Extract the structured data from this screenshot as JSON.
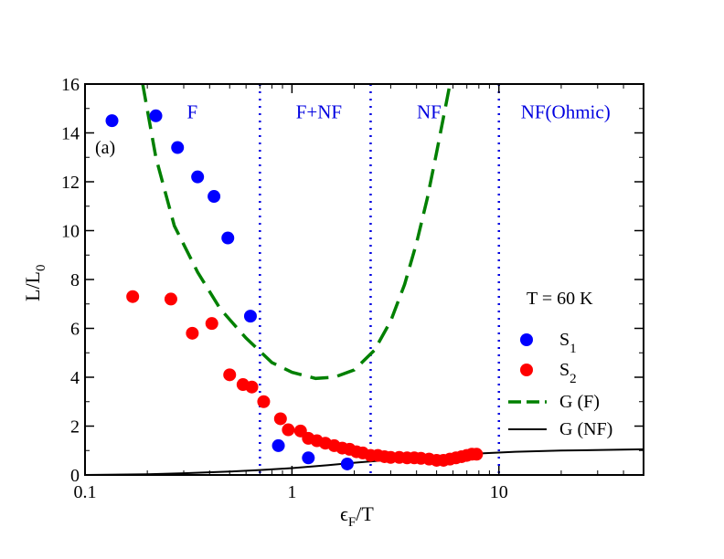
{
  "chart_data": {
    "type": "scatter",
    "panel_label": "(a)",
    "xlabel": {
      "main": "ϵ",
      "sub": "F",
      "rest": "/T"
    },
    "ylabel": {
      "main": "L/L",
      "sub": "0"
    },
    "x_scale": "log",
    "xlim": [
      0.1,
      50
    ],
    "ylim": [
      0,
      16
    ],
    "x_ticks": [
      {
        "value": 0.1,
        "label": "0.1"
      },
      {
        "value": 1,
        "label": "1"
      },
      {
        "value": 10,
        "label": "10"
      }
    ],
    "y_ticks": [
      0,
      2,
      4,
      6,
      8,
      10,
      12,
      14,
      16
    ],
    "grid": false,
    "annotation": "T = 60 K",
    "region_boundaries": [
      0.7,
      2.4,
      10
    ],
    "region_labels": [
      {
        "text": "F",
        "x": 0.33,
        "y": 14.6
      },
      {
        "text": "F+NF",
        "x": 1.35,
        "y": 14.6
      },
      {
        "text": "NF",
        "x": 4.6,
        "y": 14.6
      },
      {
        "text": "NF(Ohmic)",
        "x": 21,
        "y": 14.6
      }
    ],
    "series": [
      {
        "name": "S",
        "sub": "1",
        "kind": "points",
        "color": "#0000ff",
        "points": [
          [
            0.135,
            14.5
          ],
          [
            0.22,
            14.7
          ],
          [
            0.28,
            13.4
          ],
          [
            0.35,
            12.2
          ],
          [
            0.42,
            11.4
          ],
          [
            0.49,
            9.7
          ],
          [
            0.63,
            6.5
          ],
          [
            0.86,
            1.2
          ],
          [
            1.2,
            0.7
          ],
          [
            1.85,
            0.45
          ]
        ]
      },
      {
        "name": "S",
        "sub": "2",
        "kind": "points",
        "color": "#ff0000",
        "points": [
          [
            0.17,
            7.3
          ],
          [
            0.26,
            7.2
          ],
          [
            0.33,
            5.8
          ],
          [
            0.41,
            6.2
          ],
          [
            0.5,
            4.1
          ],
          [
            0.58,
            3.7
          ],
          [
            0.64,
            3.6
          ],
          [
            0.73,
            3.0
          ],
          [
            0.88,
            2.3
          ],
          [
            0.96,
            1.85
          ],
          [
            1.1,
            1.8
          ],
          [
            1.2,
            1.5
          ],
          [
            1.32,
            1.4
          ],
          [
            1.45,
            1.3
          ],
          [
            1.6,
            1.2
          ],
          [
            1.75,
            1.1
          ],
          [
            1.9,
            1.05
          ],
          [
            2.05,
            0.95
          ],
          [
            2.2,
            0.9
          ],
          [
            2.4,
            0.8
          ],
          [
            2.6,
            0.8
          ],
          [
            2.8,
            0.75
          ],
          [
            3.0,
            0.72
          ],
          [
            3.3,
            0.72
          ],
          [
            3.6,
            0.7
          ],
          [
            3.9,
            0.7
          ],
          [
            4.2,
            0.68
          ],
          [
            4.6,
            0.65
          ],
          [
            5.0,
            0.6
          ],
          [
            5.4,
            0.6
          ],
          [
            5.8,
            0.65
          ],
          [
            6.2,
            0.7
          ],
          [
            6.6,
            0.75
          ],
          [
            7.0,
            0.8
          ],
          [
            7.4,
            0.85
          ],
          [
            7.8,
            0.85
          ]
        ]
      },
      {
        "name": "G (F)",
        "kind": "dashed-line",
        "color": "#008000",
        "points": [
          [
            0.19,
            16.0
          ],
          [
            0.22,
            13.0
          ],
          [
            0.27,
            10.2
          ],
          [
            0.35,
            8.3
          ],
          [
            0.45,
            6.8
          ],
          [
            0.6,
            5.6
          ],
          [
            0.8,
            4.6
          ],
          [
            1.0,
            4.2
          ],
          [
            1.3,
            3.95
          ],
          [
            1.6,
            4.0
          ],
          [
            2.0,
            4.3
          ],
          [
            2.5,
            5.1
          ],
          [
            3.0,
            6.3
          ],
          [
            3.5,
            7.8
          ],
          [
            4.0,
            9.5
          ],
          [
            4.5,
            11.3
          ],
          [
            5.0,
            13.2
          ],
          [
            5.5,
            15.0
          ],
          [
            5.8,
            16.0
          ]
        ]
      },
      {
        "name": "G (NF)",
        "kind": "solid-line",
        "color": "#000000",
        "points": [
          [
            0.1,
            0.0
          ],
          [
            0.2,
            0.03
          ],
          [
            0.3,
            0.07
          ],
          [
            0.5,
            0.14
          ],
          [
            0.7,
            0.2
          ],
          [
            1.0,
            0.28
          ],
          [
            1.5,
            0.4
          ],
          [
            2.0,
            0.5
          ],
          [
            3.0,
            0.62
          ],
          [
            5.0,
            0.78
          ],
          [
            8.0,
            0.88
          ],
          [
            12.0,
            0.95
          ],
          [
            20.0,
            1.0
          ],
          [
            50.0,
            1.05
          ]
        ]
      }
    ]
  }
}
